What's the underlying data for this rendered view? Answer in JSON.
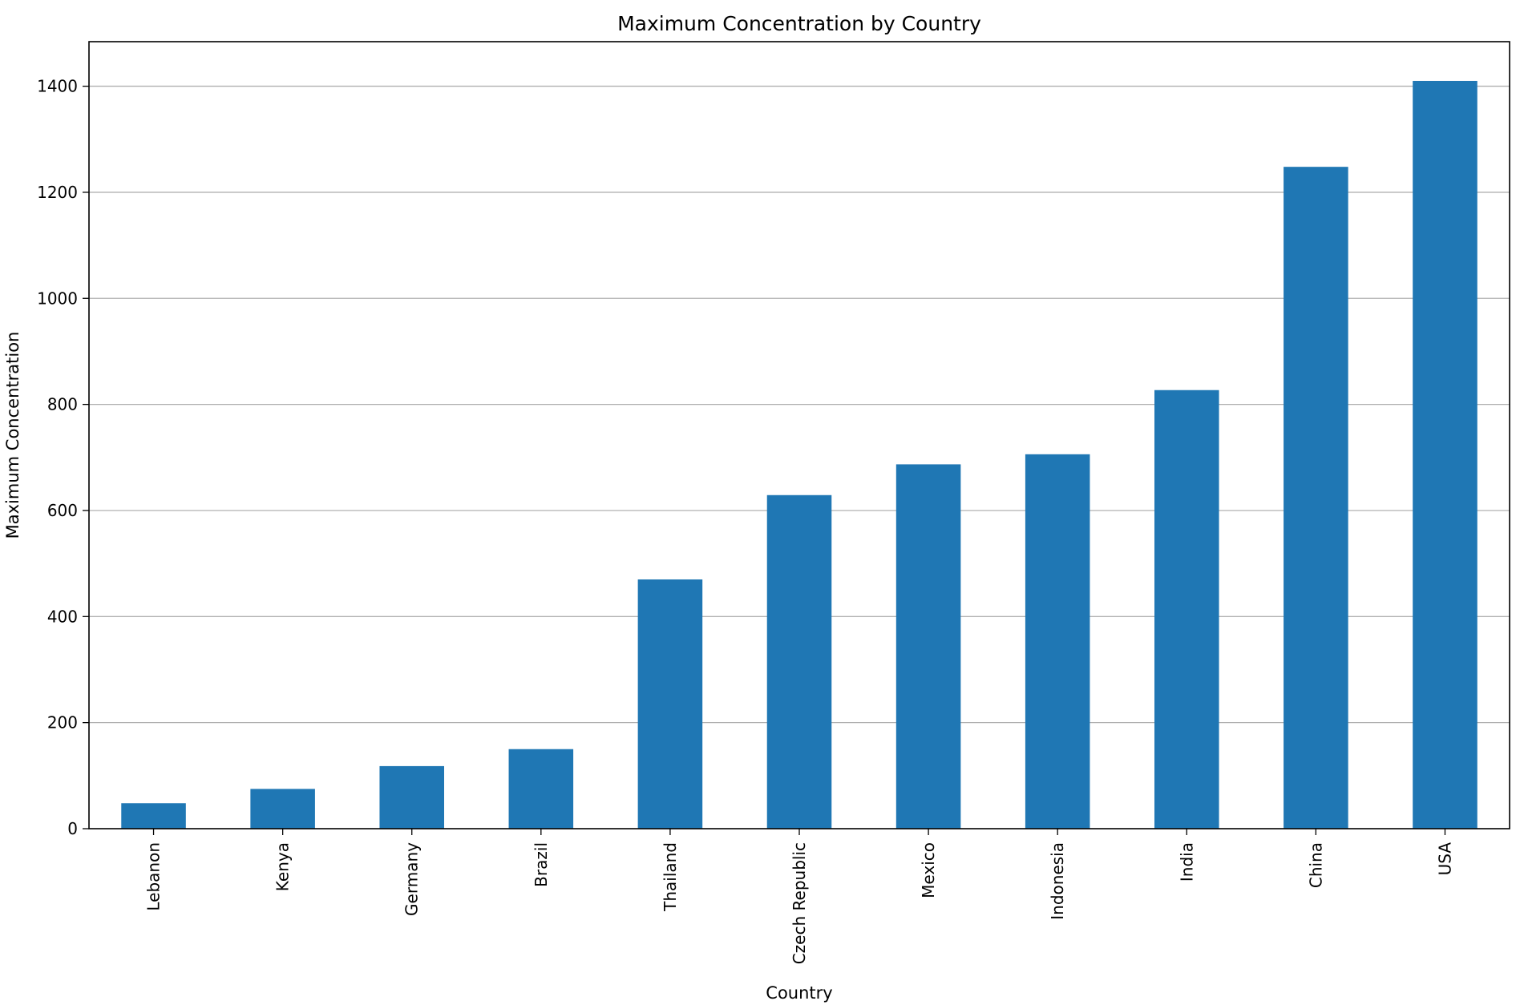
{
  "chart_data": {
    "type": "bar",
    "title": "Maximum Concentration by Country",
    "xlabel": "Country",
    "ylabel": "Maximum Concentration",
    "categories": [
      "Lebanon",
      "Kenya",
      "Germany",
      "Brazil",
      "Thailand",
      "Czech Republic",
      "Mexico",
      "Indonesia",
      "India",
      "China",
      "USA"
    ],
    "values": [
      48,
      75,
      118,
      150,
      470,
      629,
      687,
      706,
      827,
      1248,
      1410
    ],
    "ylim": [
      0,
      1484
    ],
    "yticks": [
      0,
      200,
      400,
      600,
      800,
      1000,
      1200,
      1400
    ],
    "grid": "y",
    "bar_color": "#1f77b4",
    "grid_color": "#b0b0b0",
    "legend": "none"
  }
}
